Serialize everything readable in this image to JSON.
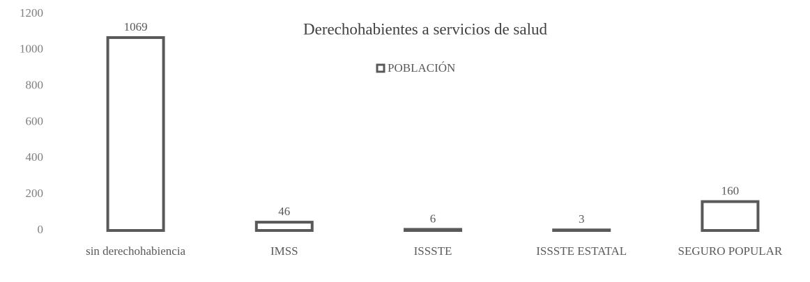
{
  "chart_data": {
    "type": "bar",
    "title": "Derechohabientes a servicios de salud",
    "categories": [
      "sin derechohabiencia",
      "IMSS",
      "ISSSTE",
      "ISSSTE ESTATAL",
      "SEGURO POPULAR"
    ],
    "series": [
      {
        "name": "POBLACIÓN",
        "color": "#595959",
        "values": [
          1069,
          46,
          6,
          3,
          160
        ]
      }
    ],
    "ylim": [
      0,
      1200
    ],
    "yticks": [
      0,
      200,
      400,
      600,
      800,
      1000,
      1200
    ],
    "grid": false,
    "legend": "top",
    "data_labels": true
  }
}
